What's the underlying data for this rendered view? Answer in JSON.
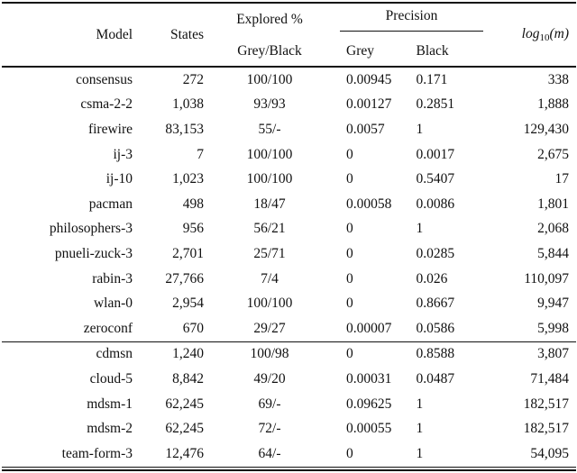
{
  "table": {
    "headers": {
      "model": "Model",
      "states": "States",
      "explored_top": "Explored %",
      "explored_bottom": "Grey/Black",
      "precision": "Precision",
      "precision_grey": "Grey",
      "precision_black": "Black",
      "log_prefix": "log",
      "log_sub": "10",
      "log_suffix": "(m)"
    },
    "sections": [
      {
        "rows": [
          {
            "model": "consensus",
            "states": "272",
            "explored": "100/100",
            "grey": "0.00945",
            "black": "0.171",
            "log": "338"
          },
          {
            "model": "csma-2-2",
            "states": "1,038",
            "explored": "93/93",
            "grey": "0.00127",
            "black": "0.2851",
            "log": "1,888"
          },
          {
            "model": "firewire",
            "states": "83,153",
            "explored": "55/-",
            "grey": "0.0057",
            "black": "1",
            "log": "129,430"
          },
          {
            "model": "ij-3",
            "states": "7",
            "explored": "100/100",
            "grey": "0",
            "black": "0.0017",
            "log": "2,675"
          },
          {
            "model": "ij-10",
            "states": "1,023",
            "explored": "100/100",
            "grey": "0",
            "black": "0.5407",
            "log": "17"
          },
          {
            "model": "pacman",
            "states": "498",
            "explored": "18/47",
            "grey": "0.00058",
            "black": "0.0086",
            "log": "1,801"
          },
          {
            "model": "philosophers-3",
            "states": "956",
            "explored": "56/21",
            "grey": "0",
            "black": "1",
            "log": "2,068"
          },
          {
            "model": "pnueli-zuck-3",
            "states": "2,701",
            "explored": "25/71",
            "grey": "0",
            "black": "0.0285",
            "log": "5,844"
          },
          {
            "model": "rabin-3",
            "states": "27,766",
            "explored": "7/4",
            "grey": "0",
            "black": "0.026",
            "log": "110,097"
          },
          {
            "model": "wlan-0",
            "states": "2,954",
            "explored": "100/100",
            "grey": "0",
            "black": "0.8667",
            "log": "9,947"
          },
          {
            "model": "zeroconf",
            "states": "670",
            "explored": "29/27",
            "grey": "0.00007",
            "black": "0.0586",
            "log": "5,998"
          }
        ]
      },
      {
        "rows": [
          {
            "model": "cdmsn",
            "states": "1,240",
            "explored": "100/98",
            "grey": "0",
            "black": "0.8588",
            "log": "3,807"
          },
          {
            "model": "cloud-5",
            "states": "8,842",
            "explored": "49/20",
            "grey": "0.00031",
            "black": "0.0487",
            "log": "71,484"
          },
          {
            "model": "mdsm-1",
            "states": "62,245",
            "explored": "69/-",
            "grey": "0.09625",
            "black": "1",
            "log": "182,517"
          },
          {
            "model": "mdsm-2",
            "states": "62,245",
            "explored": "72/-",
            "grey": "0.00055",
            "black": "1",
            "log": "182,517"
          },
          {
            "model": "team-form-3",
            "states": "12,476",
            "explored": "64/-",
            "grey": "0",
            "black": "1",
            "log": "54,095"
          }
        ]
      }
    ]
  }
}
